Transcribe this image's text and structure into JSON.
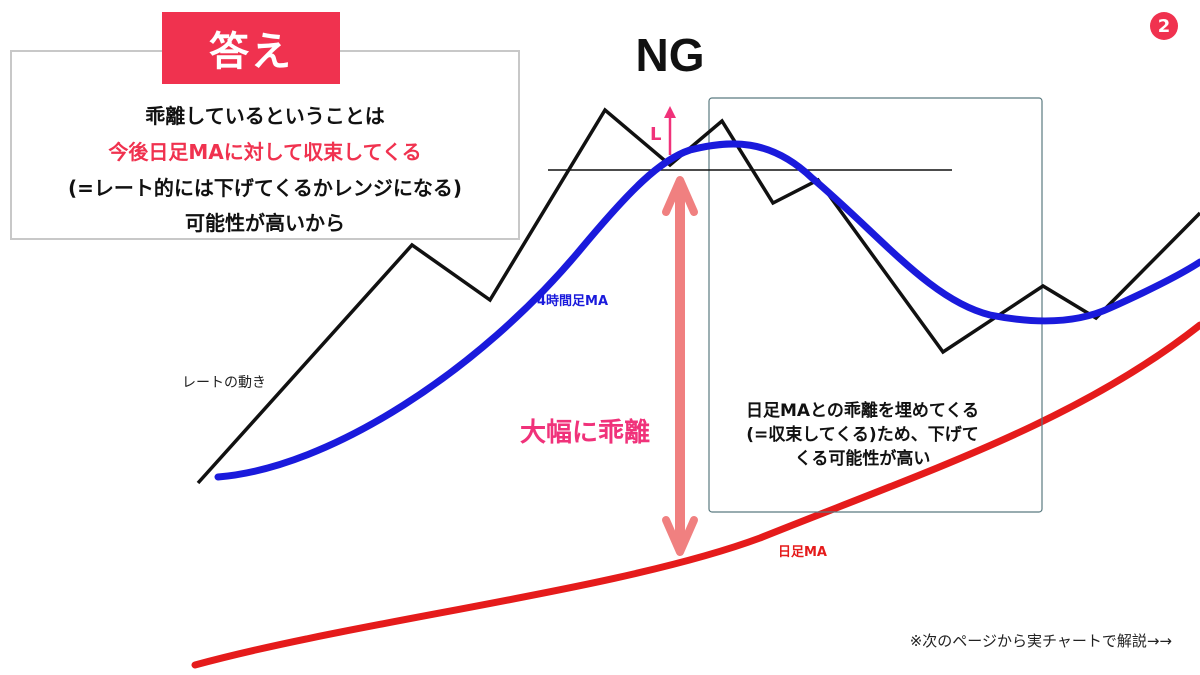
{
  "answer": {
    "tag": "答え",
    "line1": "乖離しているということは",
    "line2": "今後日足MAに対して収束してくる",
    "line3": "(=レート的には下げてくるかレンジになる)",
    "line4": "可能性が高いから"
  },
  "verdict": "NG",
  "badge": "2",
  "labels": {
    "rate": "レートの動き",
    "ma_4h": "4時間足MA",
    "ma_daily": "日足MA",
    "deviation": "大幅に乖離",
    "l_marker": "L"
  },
  "box_note": {
    "line1": "日足MAとの乖離を埋めてくる",
    "line2": "(=収束してくる)ため、下げて",
    "line3": "くる可能性が高い"
  },
  "footer": "※次のページから実チャートで解説→→",
  "colors": {
    "accent": "#f0324f",
    "ma_4h": "#1a1adc",
    "ma_daily": "#e51b1b",
    "deviation_arrow": "#f08080",
    "rate_line": "#111111"
  }
}
